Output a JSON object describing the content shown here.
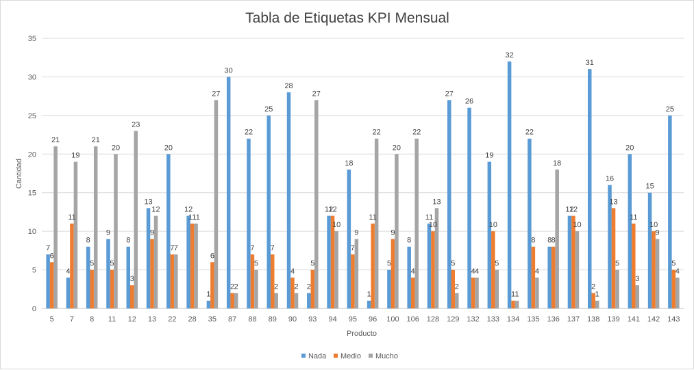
{
  "chart_data": {
    "type": "bar",
    "title": "Tabla de Etiquetas KPI Mensual",
    "xlabel": "Producto",
    "ylabel": "Cantidad",
    "ylim": [
      0,
      35
    ],
    "yticks": [
      0,
      5,
      10,
      15,
      20,
      25,
      30,
      35
    ],
    "grid": true,
    "legend": "bottom",
    "categories": [
      "5",
      "7",
      "8",
      "11",
      "12",
      "13",
      "22",
      "28",
      "35",
      "87",
      "88",
      "89",
      "90",
      "93",
      "94",
      "95",
      "96",
      "100",
      "106",
      "128",
      "129",
      "132",
      "133",
      "134",
      "135",
      "136",
      "137",
      "138",
      "139",
      "141",
      "142",
      "143"
    ],
    "series": [
      {
        "name": "Nada",
        "color": "#5b9bd5",
        "values": [
          7,
          4,
          8,
          9,
          8,
          13,
          20,
          12,
          1,
          30,
          22,
          25,
          28,
          2,
          12,
          18,
          1,
          5,
          8,
          11,
          27,
          26,
          19,
          32,
          22,
          8,
          12,
          31,
          16,
          20,
          15,
          25
        ]
      },
      {
        "name": "Medio",
        "color": "#ed7d31",
        "values": [
          6,
          11,
          5,
          5,
          3,
          9,
          7,
          11,
          6,
          2,
          7,
          7,
          4,
          5,
          12,
          7,
          11,
          9,
          4,
          10,
          5,
          4,
          10,
          1,
          8,
          8,
          12,
          2,
          13,
          11,
          10,
          5
        ]
      },
      {
        "name": "Mucho",
        "color": "#a5a5a5",
        "values": [
          21,
          19,
          21,
          20,
          23,
          12,
          7,
          11,
          27,
          2,
          5,
          2,
          2,
          27,
          10,
          9,
          22,
          20,
          22,
          13,
          2,
          4,
          5,
          1,
          4,
          18,
          10,
          1,
          5,
          3,
          9,
          4
        ]
      }
    ]
  }
}
